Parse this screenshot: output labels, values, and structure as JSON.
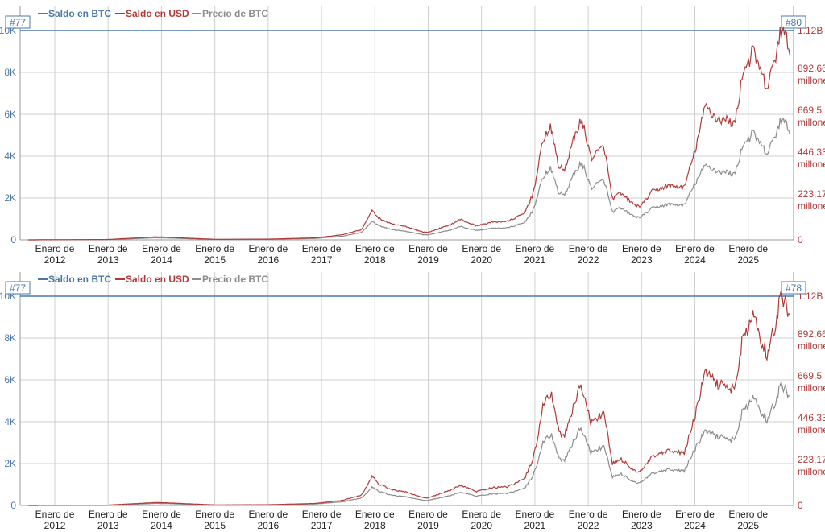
{
  "legend": {
    "btc_label": "Saldo en BTC",
    "usd_label": "Saldo en USD",
    "price_label": "Precio de BTC"
  },
  "colors": {
    "btc": "#4a78a8",
    "usd": "#b03a3a",
    "price": "#8c8c8c",
    "grid": "#cfcfcf",
    "axis": "#4a78a8"
  },
  "chart_data": [
    {
      "type": "line",
      "rank_left": "#77",
      "rank_right": "#80",
      "x_tick_labels": [
        [
          "Enero de",
          "2012"
        ],
        [
          "Enero de",
          "2013"
        ],
        [
          "Enero de",
          "2014"
        ],
        [
          "Enero de",
          "2015"
        ],
        [
          "Enero de",
          "2016"
        ],
        [
          "Enero de",
          "2017"
        ],
        [
          "Enero de",
          "2018"
        ],
        [
          "Enero de",
          "2019"
        ],
        [
          "Enero de",
          "2020"
        ],
        [
          "Enero de",
          "2021"
        ],
        [
          "Enero de",
          "2022"
        ],
        [
          "Enero de",
          "2023"
        ],
        [
          "Enero de",
          "2024"
        ],
        [
          "Enero de",
          "2025"
        ]
      ],
      "y_left_ticks": [
        "10K",
        "8K",
        "6K",
        "4K",
        "2K",
        "0"
      ],
      "y_right_ticks": [
        [
          "1.12B"
        ],
        [
          "892,66",
          "millones"
        ],
        [
          "669,5",
          "millones"
        ],
        [
          "446,33",
          "millones"
        ],
        [
          "223,17",
          "millones"
        ],
        [
          "0"
        ]
      ],
      "xlim": [
        2011.35,
        2025.85
      ],
      "ylim_btc": [
        0,
        10000
      ],
      "ylim_usd": [
        0,
        1120000000
      ],
      "series": [
        {
          "name": "Saldo en BTC",
          "x": [
            2011.35,
            2025.85
          ],
          "values": [
            10000,
            10000
          ]
        },
        {
          "name": "Saldo en USD",
          "x": [
            2011.5,
            2013.0,
            2013.9,
            2014.1,
            2015.0,
            2016.0,
            2016.9,
            2017.4,
            2017.75,
            2017.96,
            2018.05,
            2018.3,
            2018.6,
            2018.9,
            2019.0,
            2019.45,
            2019.6,
            2019.9,
            2020.2,
            2020.5,
            2020.8,
            2020.95,
            2021.05,
            2021.15,
            2021.3,
            2021.45,
            2021.55,
            2021.7,
            2021.85,
            2021.93,
            2022.05,
            2022.3,
            2022.45,
            2022.6,
            2022.9,
            2023.0,
            2023.2,
            2023.5,
            2023.8,
            2024.0,
            2024.2,
            2024.4,
            2024.6,
            2024.75,
            2024.9,
            2025.1,
            2025.25,
            2025.35,
            2025.5,
            2025.6,
            2025.7,
            2025.78
          ],
          "values": [
            0,
            2000000,
            16000000,
            14000000,
            3000000,
            4000000,
            11000000,
            28000000,
            55000000,
            160000000,
            120000000,
            85000000,
            70000000,
            42000000,
            40000000,
            85000000,
            110000000,
            75000000,
            95000000,
            100000000,
            140000000,
            235000000,
            360000000,
            540000000,
            600000000,
            390000000,
            370000000,
            510000000,
            640000000,
            590000000,
            440000000,
            500000000,
            220000000,
            250000000,
            180000000,
            185000000,
            260000000,
            290000000,
            280000000,
            475000000,
            720000000,
            650000000,
            640000000,
            620000000,
            900000000,
            1010000000,
            880000000,
            810000000,
            960000000,
            1120000000,
            1080000000,
            1030000000
          ]
        },
        {
          "name": "Precio de BTC",
          "x": [
            2011.5,
            2013.0,
            2013.9,
            2014.1,
            2015.0,
            2016.0,
            2016.9,
            2017.4,
            2017.75,
            2017.96,
            2018.05,
            2018.3,
            2018.6,
            2018.9,
            2019.0,
            2019.45,
            2019.6,
            2019.9,
            2020.2,
            2020.5,
            2020.8,
            2020.95,
            2021.05,
            2021.15,
            2021.3,
            2021.45,
            2021.55,
            2021.7,
            2021.85,
            2021.93,
            2022.05,
            2022.3,
            2022.45,
            2022.6,
            2022.9,
            2023.0,
            2023.2,
            2023.5,
            2023.8,
            2024.0,
            2024.2,
            2024.4,
            2024.6,
            2024.75,
            2024.9,
            2025.1,
            2025.25,
            2025.35,
            2025.5,
            2025.6,
            2025.7,
            2025.78
          ],
          "values": [
            0,
            1500000,
            11000000,
            10000000,
            2000000,
            3000000,
            8000000,
            20000000,
            40000000,
            100000000,
            80000000,
            55000000,
            45000000,
            28000000,
            27000000,
            55000000,
            72000000,
            50000000,
            62000000,
            65000000,
            90000000,
            150000000,
            230000000,
            340000000,
            380000000,
            250000000,
            240000000,
            330000000,
            410000000,
            380000000,
            280000000,
            320000000,
            150000000,
            170000000,
            120000000,
            125000000,
            170000000,
            190000000,
            185000000,
            300000000,
            400000000,
            370000000,
            360000000,
            350000000,
            510000000,
            570000000,
            500000000,
            460000000,
            550000000,
            640000000,
            620000000,
            590000000
          ]
        }
      ]
    },
    {
      "type": "line",
      "rank_left": "#77",
      "rank_right": "#78",
      "x_tick_labels": [
        [
          "Enero de",
          "2012"
        ],
        [
          "Enero de",
          "2013"
        ],
        [
          "Enero de",
          "2014"
        ],
        [
          "Enero de",
          "2015"
        ],
        [
          "Enero de",
          "2016"
        ],
        [
          "Enero de",
          "2017"
        ],
        [
          "Enero de",
          "2018"
        ],
        [
          "Enero de",
          "2019"
        ],
        [
          "Enero de",
          "2020"
        ],
        [
          "Enero de",
          "2021"
        ],
        [
          "Enero de",
          "2022"
        ],
        [
          "Enero de",
          "2023"
        ],
        [
          "Enero de",
          "2024"
        ],
        [
          "Enero de",
          "2025"
        ]
      ],
      "y_left_ticks": [
        "10K",
        "8K",
        "6K",
        "4K",
        "2K",
        "0"
      ],
      "y_right_ticks": [
        [
          "1.12B"
        ],
        [
          "892,66",
          "millones"
        ],
        [
          "669,5",
          "millones"
        ],
        [
          "446,33",
          "millones"
        ],
        [
          "223,17",
          "millones"
        ],
        [
          "0"
        ]
      ],
      "xlim": [
        2011.35,
        2025.85
      ],
      "ylim_btc": [
        0,
        10000
      ],
      "ylim_usd": [
        0,
        1120000000
      ],
      "series": [
        {
          "name": "Saldo en BTC",
          "x": [
            2011.35,
            2025.85
          ],
          "values": [
            10000,
            10000
          ]
        },
        {
          "name": "Saldo en USD",
          "x": [
            2011.5,
            2013.0,
            2013.9,
            2014.1,
            2015.0,
            2016.0,
            2016.9,
            2017.4,
            2017.75,
            2017.96,
            2018.05,
            2018.3,
            2018.6,
            2018.9,
            2019.0,
            2019.45,
            2019.6,
            2019.9,
            2020.2,
            2020.5,
            2020.8,
            2020.95,
            2021.05,
            2021.15,
            2021.3,
            2021.45,
            2021.55,
            2021.7,
            2021.85,
            2021.93,
            2022.05,
            2022.3,
            2022.45,
            2022.6,
            2022.9,
            2023.0,
            2023.2,
            2023.5,
            2023.8,
            2024.0,
            2024.2,
            2024.4,
            2024.6,
            2024.75,
            2024.9,
            2025.1,
            2025.25,
            2025.35,
            2025.5,
            2025.6,
            2025.7,
            2025.78
          ],
          "values": [
            0,
            2000000,
            16000000,
            14000000,
            3000000,
            4000000,
            11000000,
            28000000,
            55000000,
            160000000,
            120000000,
            85000000,
            70000000,
            42000000,
            40000000,
            85000000,
            110000000,
            75000000,
            95000000,
            100000000,
            140000000,
            235000000,
            360000000,
            540000000,
            600000000,
            390000000,
            370000000,
            510000000,
            640000000,
            590000000,
            440000000,
            500000000,
            220000000,
            250000000,
            180000000,
            185000000,
            260000000,
            290000000,
            280000000,
            475000000,
            720000000,
            650000000,
            640000000,
            620000000,
            900000000,
            1010000000,
            880000000,
            810000000,
            960000000,
            1120000000,
            1080000000,
            1030000000
          ]
        },
        {
          "name": "Precio de BTC",
          "x": [
            2011.5,
            2013.0,
            2013.9,
            2014.1,
            2015.0,
            2016.0,
            2016.9,
            2017.4,
            2017.75,
            2017.96,
            2018.05,
            2018.3,
            2018.6,
            2018.9,
            2019.0,
            2019.45,
            2019.6,
            2019.9,
            2020.2,
            2020.5,
            2020.8,
            2020.95,
            2021.05,
            2021.15,
            2021.3,
            2021.45,
            2021.55,
            2021.7,
            2021.85,
            2021.93,
            2022.05,
            2022.3,
            2022.45,
            2022.6,
            2022.9,
            2023.0,
            2023.2,
            2023.5,
            2023.8,
            2024.0,
            2024.2,
            2024.4,
            2024.6,
            2024.75,
            2024.9,
            2025.1,
            2025.25,
            2025.35,
            2025.5,
            2025.6,
            2025.7,
            2025.78
          ],
          "values": [
            0,
            1500000,
            11000000,
            10000000,
            2000000,
            3000000,
            8000000,
            20000000,
            40000000,
            100000000,
            80000000,
            55000000,
            45000000,
            28000000,
            27000000,
            55000000,
            72000000,
            50000000,
            62000000,
            65000000,
            90000000,
            150000000,
            230000000,
            340000000,
            380000000,
            250000000,
            240000000,
            330000000,
            410000000,
            380000000,
            280000000,
            320000000,
            150000000,
            170000000,
            120000000,
            125000000,
            170000000,
            190000000,
            185000000,
            300000000,
            400000000,
            370000000,
            360000000,
            350000000,
            510000000,
            570000000,
            500000000,
            460000000,
            550000000,
            640000000,
            620000000,
            590000000
          ]
        }
      ]
    }
  ]
}
